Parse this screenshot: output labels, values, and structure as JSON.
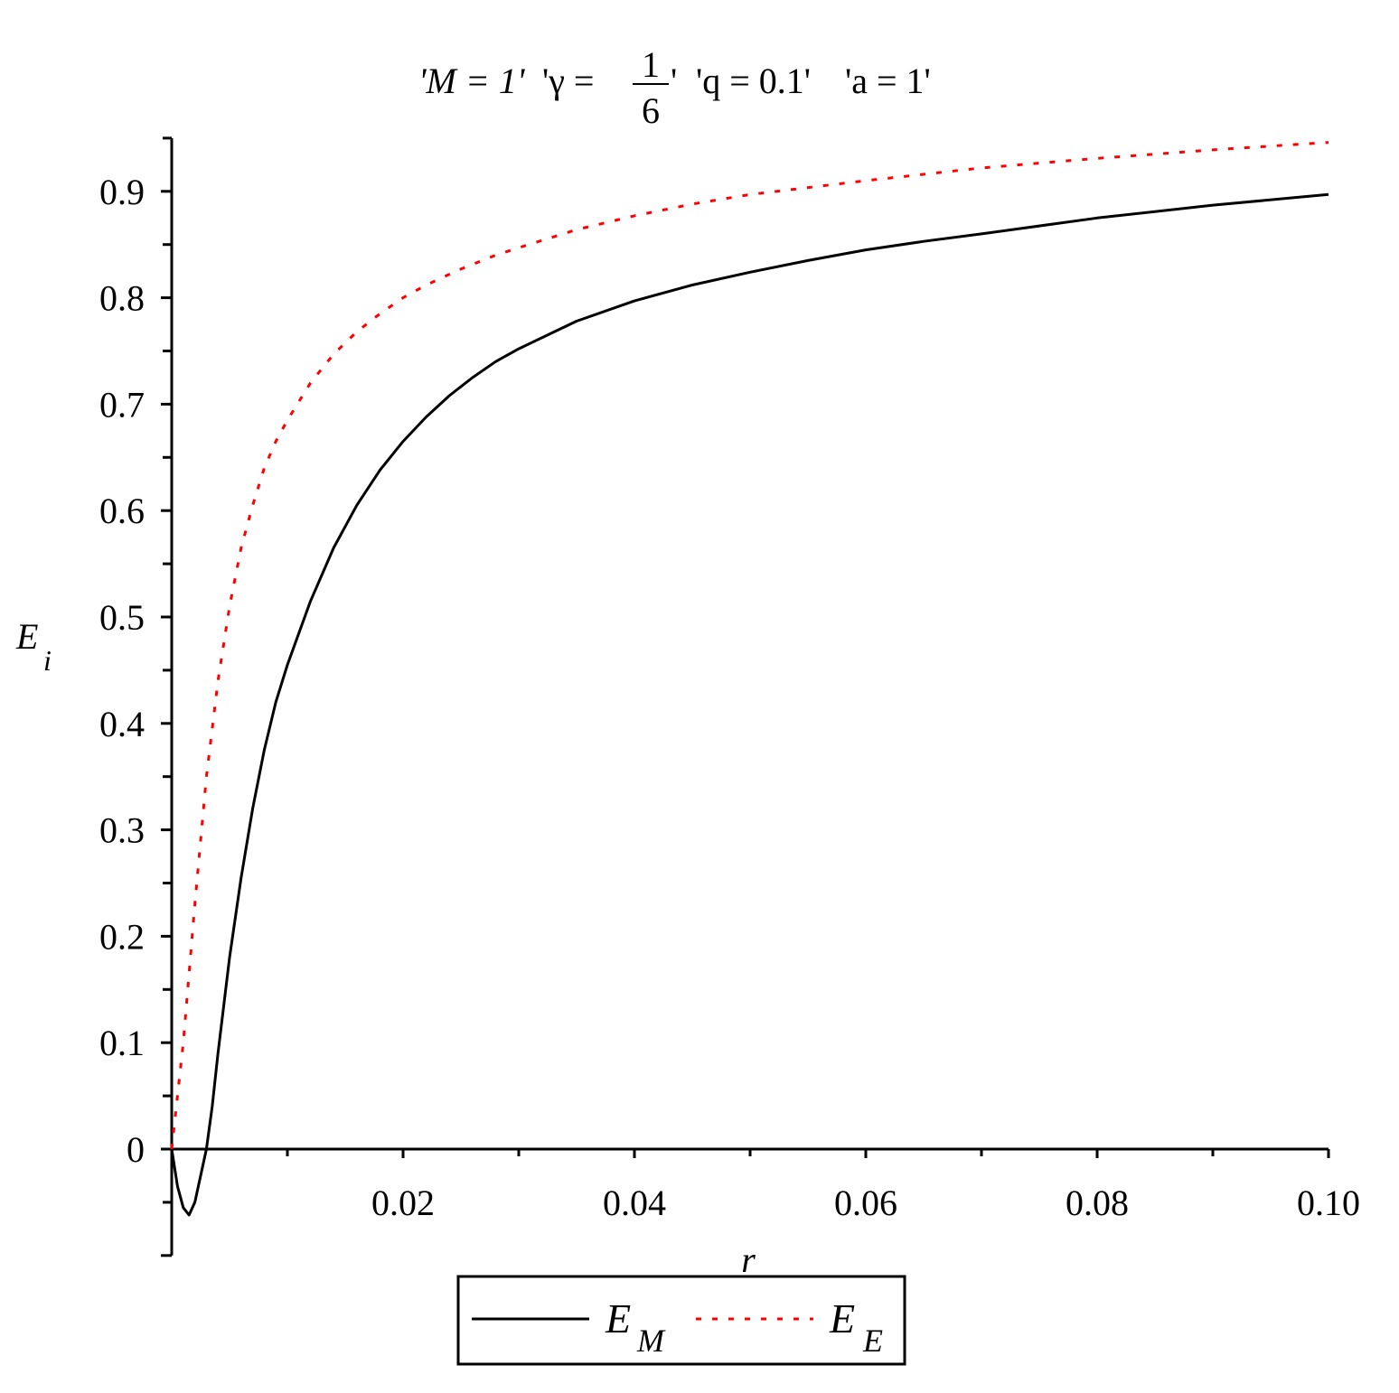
{
  "chart_data": {
    "type": "line",
    "title_parts": {
      "m": "'M = 1'",
      "gamma_pre": "'γ = ",
      "gamma_num": "1",
      "gamma_den": "6",
      "gamma_post": "'",
      "q": "'q = 0.1'",
      "a": "'a = 1'"
    },
    "xlabel": "r",
    "ylabel": {
      "base": "E",
      "sub": "i"
    },
    "xlim": [
      0,
      0.1
    ],
    "ylim": [
      -0.1,
      0.95
    ],
    "xticks": [
      0.02,
      0.04,
      0.06,
      0.08,
      0.1
    ],
    "xtick_labels": [
      "0.02",
      "0.04",
      "0.06",
      "0.08",
      "0.10"
    ],
    "yticks": [
      0,
      0.1,
      0.2,
      0.3,
      0.4,
      0.5,
      0.6,
      0.7,
      0.8,
      0.9
    ],
    "ytick_labels": [
      "0",
      "0.1",
      "0.2",
      "0.3",
      "0.4",
      "0.5",
      "0.6",
      "0.7",
      "0.8",
      "0.9"
    ],
    "grid": false,
    "legend_position": "bottom-center",
    "series": [
      {
        "name": "E_M",
        "label_base": "E",
        "label_sub": "M",
        "color": "#000000",
        "style": "solid",
        "x": [
          0,
          0.0005,
          0.001,
          0.0015,
          0.002,
          0.0025,
          0.003,
          0.0035,
          0.004,
          0.005,
          0.006,
          0.007,
          0.008,
          0.009,
          0.01,
          0.012,
          0.014,
          0.016,
          0.018,
          0.02,
          0.022,
          0.024,
          0.026,
          0.028,
          0.03,
          0.035,
          0.04,
          0.045,
          0.05,
          0.055,
          0.06,
          0.065,
          0.07,
          0.08,
          0.09,
          0.1
        ],
        "y": [
          0,
          -0.035,
          -0.055,
          -0.062,
          -0.05,
          -0.025,
          0.0,
          0.04,
          0.09,
          0.18,
          0.255,
          0.32,
          0.375,
          0.42,
          0.455,
          0.515,
          0.565,
          0.605,
          0.638,
          0.665,
          0.688,
          0.708,
          0.725,
          0.74,
          0.752,
          0.778,
          0.797,
          0.812,
          0.824,
          0.835,
          0.845,
          0.853,
          0.86,
          0.875,
          0.887,
          0.897
        ]
      },
      {
        "name": "E_E",
        "label_base": "E",
        "label_sub": "E",
        "color": "#ff0000",
        "style": "dotted",
        "x": [
          0,
          0.001,
          0.002,
          0.003,
          0.004,
          0.005,
          0.006,
          0.007,
          0.008,
          0.009,
          0.01,
          0.012,
          0.014,
          0.016,
          0.018,
          0.02,
          0.022,
          0.025,
          0.028,
          0.03,
          0.035,
          0.04,
          0.045,
          0.05,
          0.06,
          0.07,
          0.08,
          0.09,
          0.1
        ],
        "y": [
          0,
          0.1,
          0.23,
          0.35,
          0.44,
          0.51,
          0.565,
          0.605,
          0.64,
          0.665,
          0.685,
          0.72,
          0.747,
          0.768,
          0.785,
          0.8,
          0.812,
          0.827,
          0.84,
          0.847,
          0.864,
          0.877,
          0.888,
          0.897,
          0.91,
          0.922,
          0.931,
          0.939,
          0.946
        ]
      }
    ]
  }
}
